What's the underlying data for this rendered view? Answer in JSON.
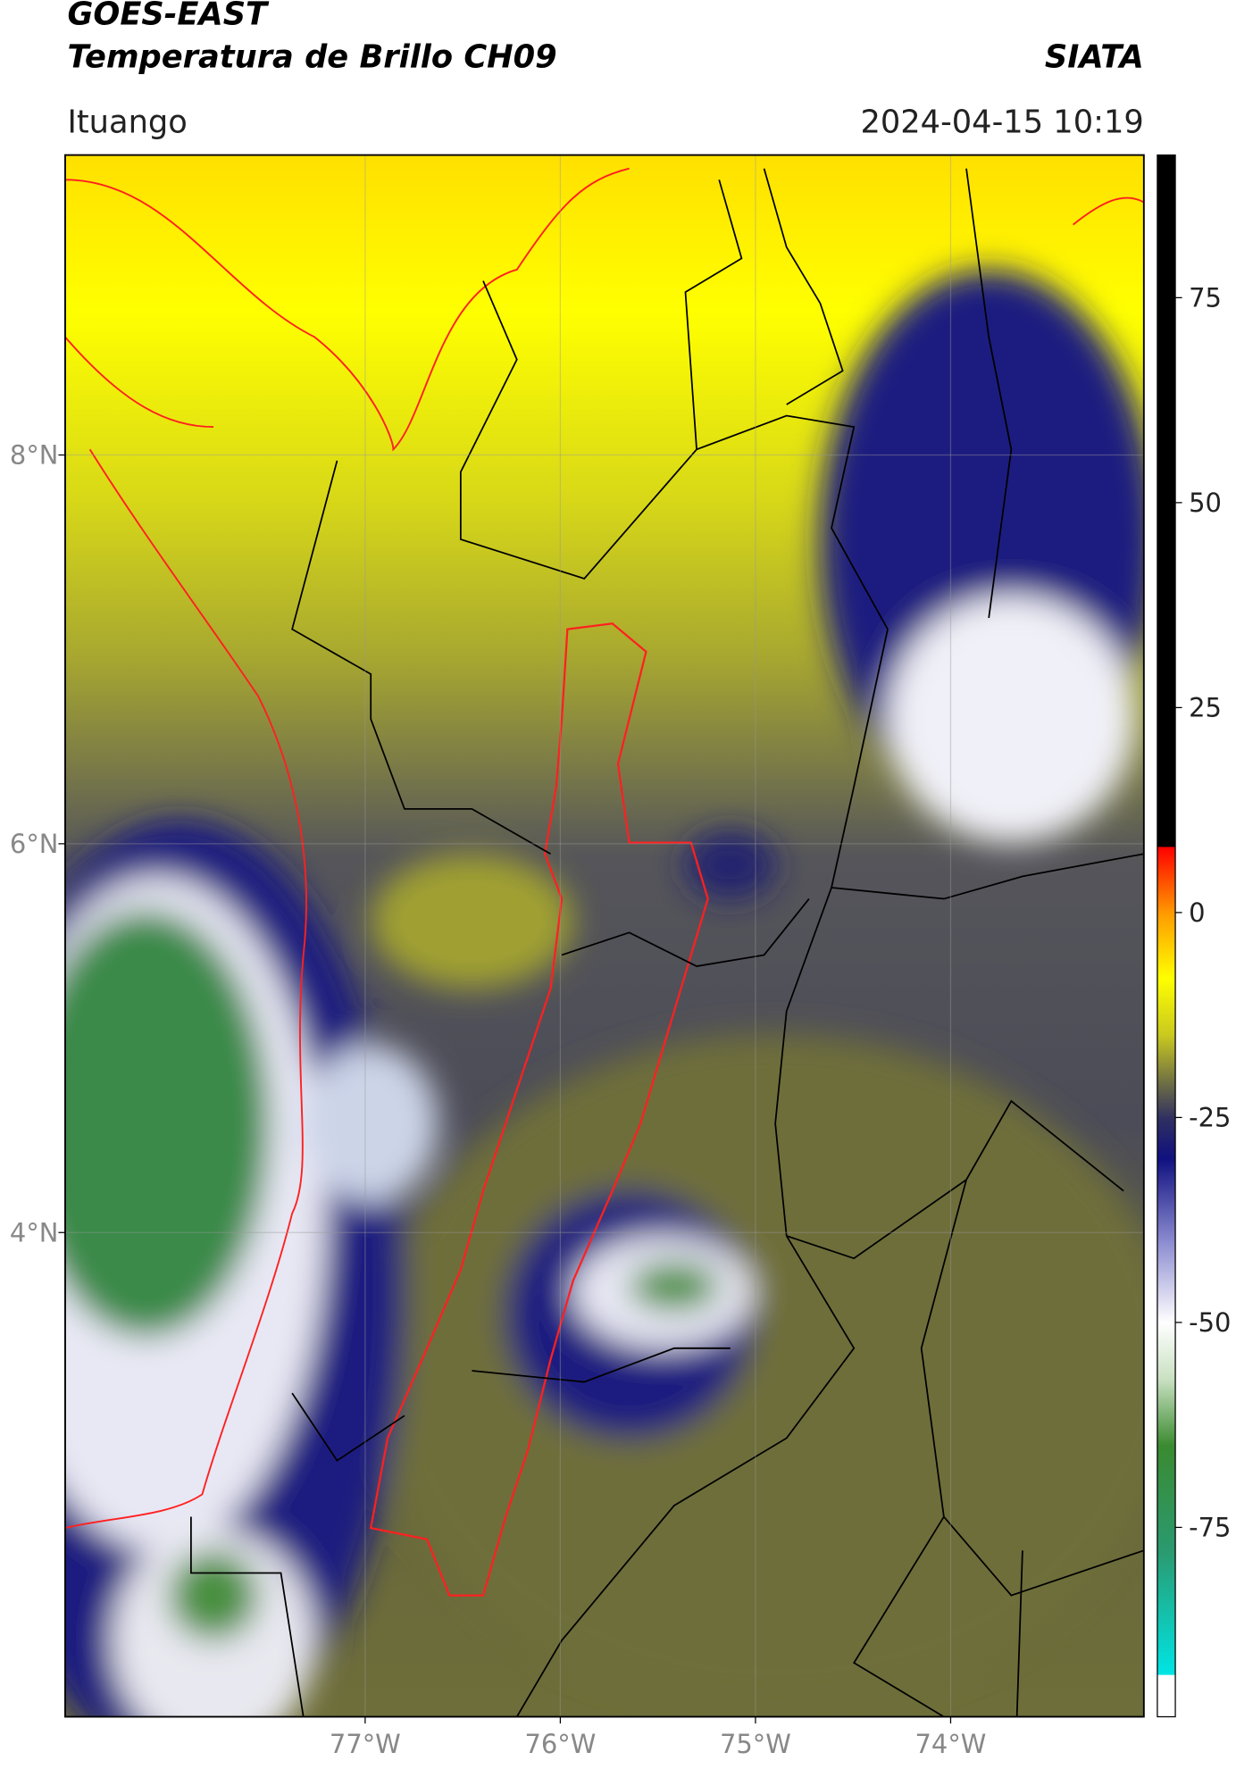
{
  "header": {
    "title": "GOES-EAST",
    "subtitle": "Temperatura de Brillo CH09",
    "source": "SIATA",
    "region": "Ituango",
    "datetime": "2024-04-15 10:19"
  },
  "map": {
    "xlim": [
      -78.537,
      -73.01
    ],
    "ylim": [
      1.509,
      9.543
    ],
    "xticks": [
      {
        "value": -77,
        "label": "77°W"
      },
      {
        "value": -76,
        "label": "76°W"
      },
      {
        "value": -75,
        "label": "75°W"
      },
      {
        "value": -74,
        "label": "74°W"
      }
    ],
    "yticks": [
      {
        "value": 8,
        "label": "8°N"
      },
      {
        "value": 6,
        "label": "6°N"
      },
      {
        "value": 4,
        "label": "4°N"
      }
    ],
    "grid": true
  },
  "colorbar": {
    "lim": [
      -98.1,
      92.4
    ],
    "ticks": [
      75,
      50,
      25,
      0,
      -25,
      -50,
      -75
    ],
    "stops": [
      {
        "value": -98.1,
        "color": "#ffffff"
      },
      {
        "value": -93,
        "color": "#ffffff"
      },
      {
        "value": -92.9,
        "color": "#00e5e5"
      },
      {
        "value": -78,
        "color": "#2a9a70"
      },
      {
        "value": -65,
        "color": "#3a8a30"
      },
      {
        "value": -57,
        "color": "#c8e0c0"
      },
      {
        "value": -50,
        "color": "#ffffff"
      },
      {
        "value": -40,
        "color": "#8a8ad0"
      },
      {
        "value": -30,
        "color": "#101080"
      },
      {
        "value": -25,
        "color": "#303060"
      },
      {
        "value": -20,
        "color": "#7a7a40"
      },
      {
        "value": -15,
        "color": "#c8c820"
      },
      {
        "value": -8,
        "color": "#ffff00"
      },
      {
        "value": 0,
        "color": "#ff9900"
      },
      {
        "value": 8,
        "color": "#ff0000"
      },
      {
        "value": 8.1,
        "color": "#000000"
      },
      {
        "value": 92.4,
        "color": "#000000"
      }
    ]
  }
}
